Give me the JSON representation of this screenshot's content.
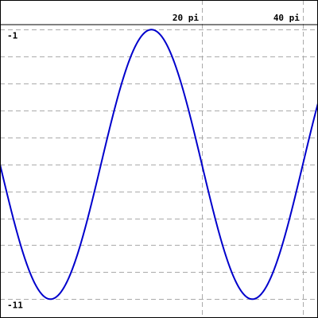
{
  "chart_data": {
    "type": "line",
    "title": "",
    "xlabel": "",
    "ylabel": "",
    "xlim": [
      "-20 pi",
      "43 pi"
    ],
    "ylim": [
      -11.7,
      0.1
    ],
    "x_ticks": [
      {
        "value": 20,
        "label": "20 pi"
      },
      {
        "value": 40,
        "label": "40 pi"
      }
    ],
    "y_ticks": [
      {
        "value": -1,
        "label": "-1"
      },
      {
        "value": -11,
        "label": "-11"
      }
    ],
    "y_gridlines": [
      -1,
      -2,
      -3,
      -4,
      -5,
      -6,
      -7,
      -8,
      -9,
      -10,
      -11
    ],
    "grid": true,
    "series": [
      {
        "function": "y = -6 + 5*sin(x/20)",
        "x_range": [
          "-20 pi",
          "43 pi"
        ],
        "color": "#0000cc"
      }
    ]
  }
}
